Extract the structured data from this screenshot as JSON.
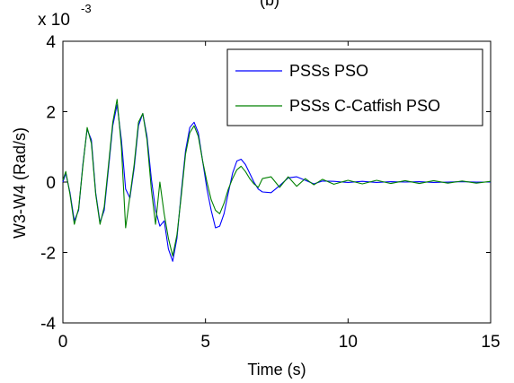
{
  "chart_data": {
    "type": "line",
    "title_fragment": "(b)",
    "xlabel": "Time (s)",
    "ylabel": "W3-W4 (Rad/s)",
    "exponent_base": "x 10",
    "exponent_power": "-3",
    "xlim": [
      0,
      15
    ],
    "ylim": [
      -4,
      4
    ],
    "x_ticks": [
      0,
      5,
      10,
      15
    ],
    "y_ticks": [
      -4,
      -2,
      0,
      2,
      4
    ],
    "grid": false,
    "legend_position": "top-right",
    "series": [
      {
        "name": "PSSs PSO",
        "color": "#0000ff",
        "x": [
          0,
          0.1,
          0.25,
          0.4,
          0.55,
          0.7,
          0.85,
          1.0,
          1.15,
          1.3,
          1.45,
          1.6,
          1.75,
          1.9,
          2.05,
          2.2,
          2.35,
          2.5,
          2.65,
          2.8,
          2.95,
          3.1,
          3.25,
          3.4,
          3.55,
          3.7,
          3.85,
          4.0,
          4.15,
          4.3,
          4.45,
          4.6,
          4.75,
          4.9,
          5.05,
          5.2,
          5.35,
          5.5,
          5.65,
          5.8,
          5.95,
          6.1,
          6.25,
          6.4,
          6.55,
          6.7,
          6.85,
          7.0,
          7.3,
          7.6,
          7.9,
          8.2,
          8.5,
          8.8,
          9.1,
          9.5,
          10,
          10.5,
          11,
          11.5,
          12,
          12.5,
          13,
          13.5,
          14,
          14.5,
          15
        ],
        "y": [
          0.0,
          0.25,
          -0.3,
          -1.1,
          -0.8,
          0.5,
          1.5,
          1.2,
          -0.3,
          -1.15,
          -0.8,
          0.4,
          1.6,
          2.2,
          1.2,
          -0.2,
          -0.45,
          0.4,
          1.6,
          1.95,
          1.3,
          0.1,
          -0.8,
          -1.25,
          -1.1,
          -1.9,
          -2.25,
          -1.6,
          -0.3,
          0.9,
          1.55,
          1.7,
          1.4,
          0.6,
          -0.2,
          -0.8,
          -1.3,
          -1.25,
          -0.9,
          -0.3,
          0.25,
          0.6,
          0.65,
          0.5,
          0.25,
          0.0,
          -0.2,
          -0.28,
          -0.3,
          -0.1,
          0.12,
          0.15,
          0.05,
          -0.05,
          0.03,
          0.02,
          -0.01,
          0.02,
          -0.01,
          0.01,
          0.0,
          0.01,
          -0.01,
          0.0,
          0.01,
          0.0,
          0.0
        ]
      },
      {
        "name": "PSSs C-Catfish PSO",
        "color": "#008000",
        "x": [
          0,
          0.1,
          0.25,
          0.4,
          0.55,
          0.7,
          0.85,
          1.0,
          1.15,
          1.3,
          1.45,
          1.6,
          1.75,
          1.9,
          2.05,
          2.2,
          2.35,
          2.5,
          2.65,
          2.8,
          2.95,
          3.1,
          3.25,
          3.4,
          3.55,
          3.7,
          3.85,
          4.0,
          4.15,
          4.3,
          4.45,
          4.6,
          4.75,
          4.9,
          5.05,
          5.2,
          5.35,
          5.5,
          5.65,
          5.8,
          5.95,
          6.1,
          6.25,
          6.4,
          6.55,
          6.7,
          6.85,
          7.0,
          7.3,
          7.6,
          7.9,
          8.2,
          8.5,
          8.8,
          9.1,
          9.5,
          10,
          10.5,
          11,
          11.5,
          12,
          12.5,
          13,
          13.5,
          14,
          14.5,
          15
        ],
        "y": [
          0.05,
          0.3,
          -0.35,
          -1.2,
          -0.75,
          0.45,
          1.55,
          1.1,
          -0.35,
          -1.2,
          -0.7,
          0.5,
          1.7,
          2.35,
          1.0,
          -1.3,
          -0.4,
          0.5,
          1.7,
          1.95,
          1.2,
          -0.2,
          -1.2,
          0.0,
          -0.9,
          -1.6,
          -2.1,
          -1.5,
          -0.4,
          0.8,
          1.4,
          1.6,
          1.3,
          0.6,
          0.0,
          -0.5,
          -0.8,
          -0.9,
          -0.6,
          -0.2,
          0.1,
          0.35,
          0.45,
          0.3,
          0.1,
          -0.05,
          -0.15,
          0.1,
          0.15,
          -0.15,
          0.15,
          -0.12,
          0.1,
          -0.08,
          0.08,
          -0.06,
          0.05,
          -0.05,
          0.05,
          -0.04,
          0.04,
          -0.04,
          0.04,
          -0.03,
          0.03,
          -0.03,
          0.02
        ]
      }
    ]
  }
}
